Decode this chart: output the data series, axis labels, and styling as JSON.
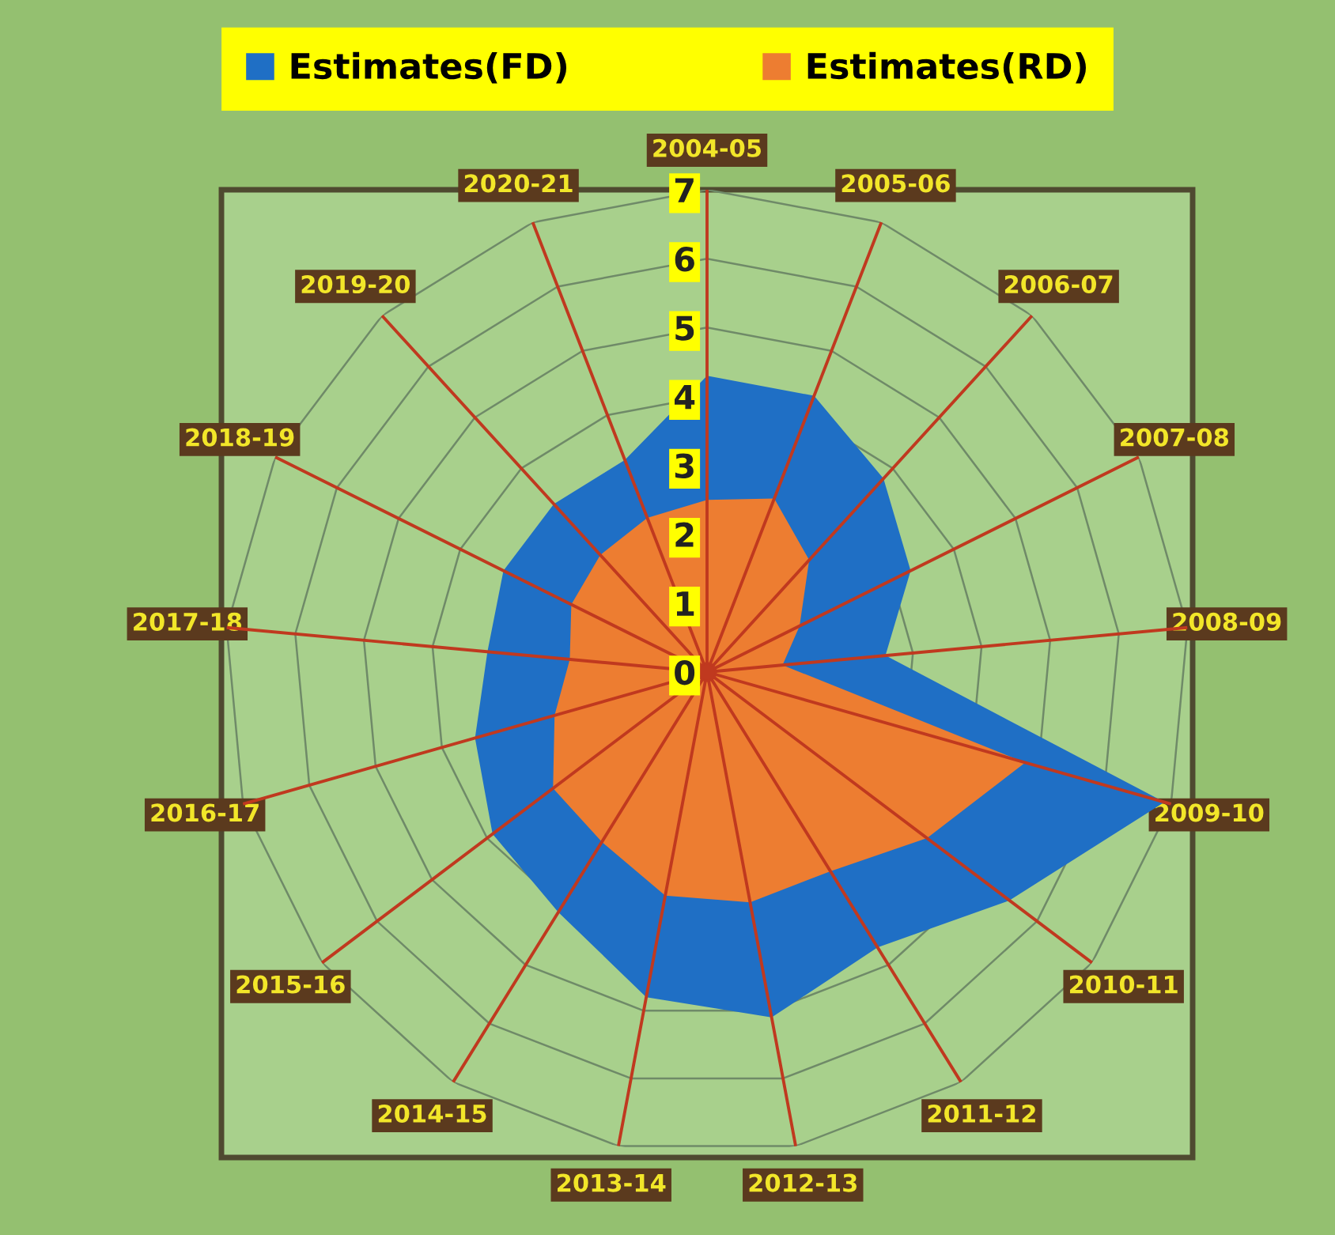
{
  "chart_data": {
    "type": "radar",
    "categories": [
      "2004-05",
      "2005-06",
      "2006-07",
      "2007-08",
      "2008-09",
      "2009-10",
      "2010-11",
      "2011-12",
      "2012-13",
      "2013-14",
      "2014-15",
      "2015-16",
      "2016-17",
      "2017-18",
      "2018-19",
      "2019-20",
      "2020-21"
    ],
    "series": [
      {
        "name": "Estimates(FD)",
        "color": "#1f6fc5",
        "values": [
          4.3,
          4.3,
          3.8,
          3.3,
          2.6,
          6.9,
          5.5,
          4.7,
          5.1,
          4.8,
          4.1,
          3.9,
          3.5,
          3.2,
          3.3,
          3.3,
          3.3
        ]
      },
      {
        "name": "Estimates(RD)",
        "color": "#ed7d31",
        "values": [
          2.5,
          2.7,
          2.2,
          1.5,
          1.1,
          4.8,
          4.0,
          3.4,
          3.4,
          3.3,
          2.9,
          2.8,
          2.3,
          2.0,
          2.2,
          2.3,
          2.4
        ]
      }
    ],
    "ylim": [
      0,
      7
    ],
    "yticks": [
      0,
      1,
      2,
      3,
      4,
      5,
      6,
      7
    ],
    "grid": true,
    "legend": "top"
  }
}
